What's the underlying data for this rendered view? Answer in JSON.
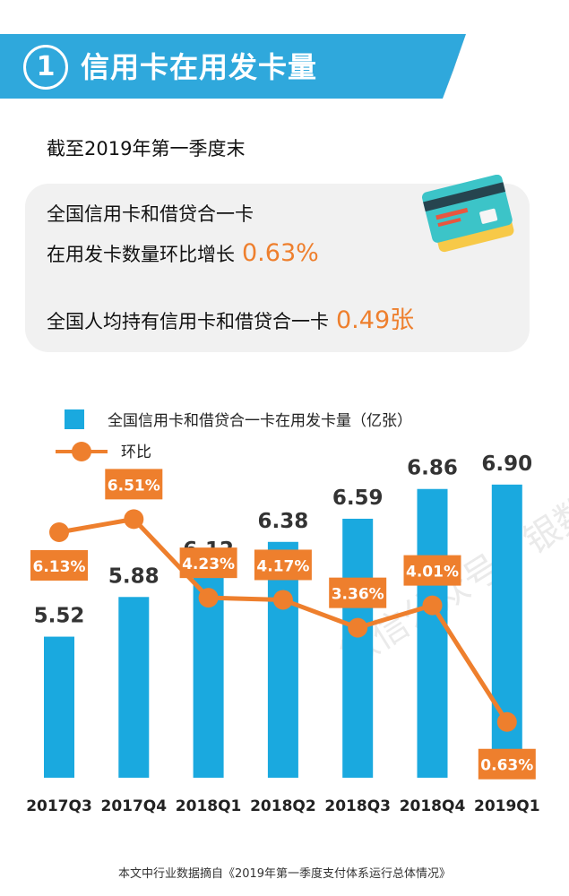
{
  "header": {
    "number": "1",
    "title": "信用卡在用发卡量"
  },
  "subtitle": "截至2019年第一季度末",
  "info": {
    "line1": "全国信用卡和借贷合一卡",
    "line2_prefix": "在用发卡数量环比增长",
    "growth": "0.63%",
    "line3_prefix": "全国人均持有信用卡和借贷合一卡",
    "per_capita": "0.49张"
  },
  "watermark": "微信公众号：银数观卡",
  "colors": {
    "bar": "#1aa9df",
    "line": "#ee7f2d",
    "banner": "#2fa8dc"
  },
  "chart_data": {
    "type": "bar+line",
    "categories": [
      "2017Q3",
      "2017Q4",
      "2018Q1",
      "2018Q2",
      "2018Q3",
      "2018Q4",
      "2019Q1"
    ],
    "series": [
      {
        "name": "全国信用卡和借贷合一卡在用发卡量（亿张）",
        "type": "bar",
        "values": [
          5.52,
          5.88,
          6.12,
          6.38,
          6.59,
          6.86,
          6.9
        ],
        "labels": [
          "5.52",
          "5.88",
          "6.12",
          "6.38",
          "6.59",
          "6.86",
          "6.90"
        ]
      },
      {
        "name": "环比",
        "type": "line",
        "values": [
          6.13,
          6.51,
          4.23,
          4.17,
          3.36,
          4.01,
          0.63
        ],
        "labels": [
          "6.13%",
          "6.51%",
          "4.23%",
          "4.17%",
          "3.36%",
          "4.01%",
          "0.63%"
        ]
      }
    ],
    "legend": "top-left"
  },
  "footnote": "本文中行业数据摘自《2019年第一季度支付体系运行总体情况》"
}
